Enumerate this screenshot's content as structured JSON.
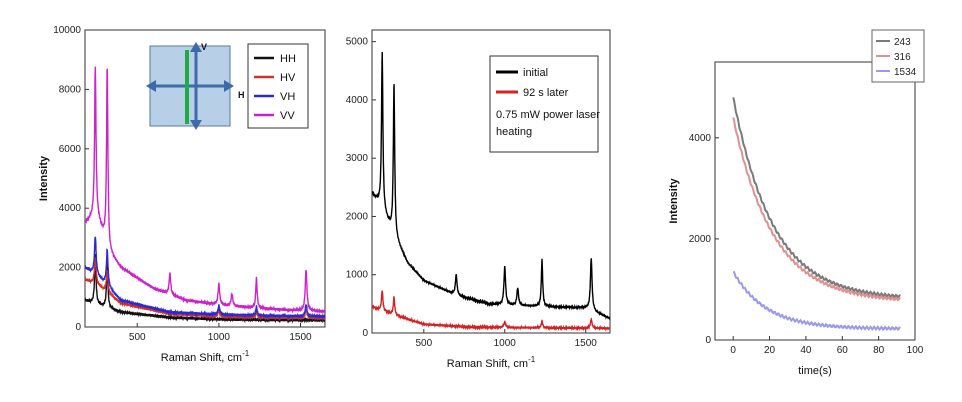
{
  "chart_data": [
    {
      "type": "line",
      "xlabel": "Raman Shift, cm",
      "xlabel_sup": "-1",
      "ylabel": "Intensity",
      "xlim": [
        180,
        1650
      ],
      "ylim": [
        0,
        10000
      ],
      "xticks": [
        500,
        1000,
        1500
      ],
      "yticks": [
        0,
        2000,
        4000,
        6000,
        8000,
        10000
      ],
      "legend_position": "top-right",
      "inset": {
        "v_label": "V",
        "h_label": "H"
      },
      "series": [
        {
          "name": "HH",
          "color": "#111111",
          "peaks": [
            [
              243,
              1700,
              5
            ],
            [
              316,
              1500,
              5
            ]
          ],
          "baseline": [
            [
              180,
              900
            ],
            [
              400,
              500
            ],
            [
              700,
              320
            ],
            [
              1000,
              260
            ],
            [
              1300,
              240
            ],
            [
              1650,
              230
            ]
          ]
        },
        {
          "name": "HV",
          "color": "#d43030",
          "peaks": [
            [
              243,
              900,
              6
            ],
            [
              316,
              700,
              6
            ],
            [
              1000,
              200,
              6
            ],
            [
              1230,
              200,
              5
            ],
            [
              1534,
              300,
              6
            ]
          ],
          "baseline": [
            [
              180,
              1600
            ],
            [
              260,
              1400
            ],
            [
              400,
              800
            ],
            [
              700,
              450
            ],
            [
              1000,
              350
            ],
            [
              1300,
              320
            ],
            [
              1650,
              300
            ]
          ]
        },
        {
          "name": "VH",
          "color": "#2a2ad0",
          "peaks": [
            [
              243,
              1300,
              6
            ],
            [
              316,
              1200,
              6
            ],
            [
              1000,
              300,
              6
            ],
            [
              1230,
              300,
              5
            ],
            [
              1534,
              400,
              6
            ]
          ],
          "baseline": [
            [
              180,
              2000
            ],
            [
              260,
              1700
            ],
            [
              400,
              900
            ],
            [
              700,
              500
            ],
            [
              1000,
              420
            ],
            [
              1300,
              380
            ],
            [
              1650,
              360
            ]
          ]
        },
        {
          "name": "VV",
          "color": "#cc22cc",
          "peaks": [
            [
              243,
              5000,
              5
            ],
            [
              316,
              6000,
              5
            ],
            [
              700,
              700,
              6
            ],
            [
              1000,
              700,
              6
            ],
            [
              1080,
              400,
              6
            ],
            [
              1230,
              1000,
              5
            ],
            [
              1534,
              1400,
              6
            ]
          ],
          "baseline": [
            [
              180,
              3500
            ],
            [
              250,
              3800
            ],
            [
              330,
              2500
            ],
            [
              400,
              2000
            ],
            [
              600,
              1300
            ],
            [
              800,
              900
            ],
            [
              1000,
              750
            ],
            [
              1200,
              650
            ],
            [
              1400,
              580
            ],
            [
              1650,
              520
            ]
          ]
        }
      ]
    },
    {
      "type": "line",
      "xlabel": "Raman Shift, cm",
      "xlabel_sup": "-1",
      "ylabel": "Intensity",
      "xlim": [
        180,
        1650
      ],
      "ylim": [
        0,
        5200
      ],
      "xticks": [
        500,
        1000,
        1500
      ],
      "yticks": [
        0,
        1000,
        2000,
        3000,
        4000,
        5000
      ],
      "legend_position": "top-right",
      "legend_note": [
        "0.75 mW power laser",
        "heating"
      ],
      "series": [
        {
          "name": "initial",
          "color": "#000000",
          "peaks": [
            [
              243,
              2700,
              5
            ],
            [
              316,
              2600,
              5
            ],
            [
              700,
              350,
              6
            ],
            [
              1000,
              650,
              6
            ],
            [
              1080,
              300,
              6
            ],
            [
              1230,
              800,
              5
            ],
            [
              1534,
              900,
              6
            ]
          ],
          "baseline": [
            [
              180,
              2400
            ],
            [
              230,
              2200
            ],
            [
              330,
              1600
            ],
            [
              400,
              1200
            ],
            [
              500,
              900
            ],
            [
              700,
              650
            ],
            [
              900,
              500
            ],
            [
              1100,
              470
            ],
            [
              1300,
              450
            ],
            [
              1500,
              430
            ],
            [
              1650,
              250
            ]
          ]
        },
        {
          "name": "92 s later",
          "color": "#d32020",
          "peaks": [
            [
              243,
              350,
              5
            ],
            [
              316,
              300,
              5
            ],
            [
              1000,
              100,
              6
            ],
            [
              1230,
              120,
              5
            ],
            [
              1534,
              150,
              6
            ]
          ],
          "baseline": [
            [
              180,
              450
            ],
            [
              330,
              300
            ],
            [
              500,
              150
            ],
            [
              800,
              100
            ],
            [
              1200,
              90
            ],
            [
              1650,
              80
            ]
          ]
        }
      ]
    },
    {
      "type": "line",
      "xlabel": "time(s)",
      "ylabel": "Intensity",
      "xlim": [
        -10,
        100
      ],
      "ylim": [
        0,
        5500
      ],
      "xticks": [
        0,
        20,
        40,
        60,
        80,
        100
      ],
      "yticks": [
        0,
        2000,
        4000
      ],
      "legend_position": "top-right",
      "series": [
        {
          "name": "243",
          "color": "#7a7a7a",
          "start": 4800,
          "end": 800,
          "tau": 22
        },
        {
          "name": "316",
          "color": "#e09090",
          "start": 4400,
          "end": 750,
          "tau": 22
        },
        {
          "name": "1534",
          "color": "#9a9ae8",
          "start": 1350,
          "end": 220,
          "tau": 18
        }
      ]
    }
  ]
}
